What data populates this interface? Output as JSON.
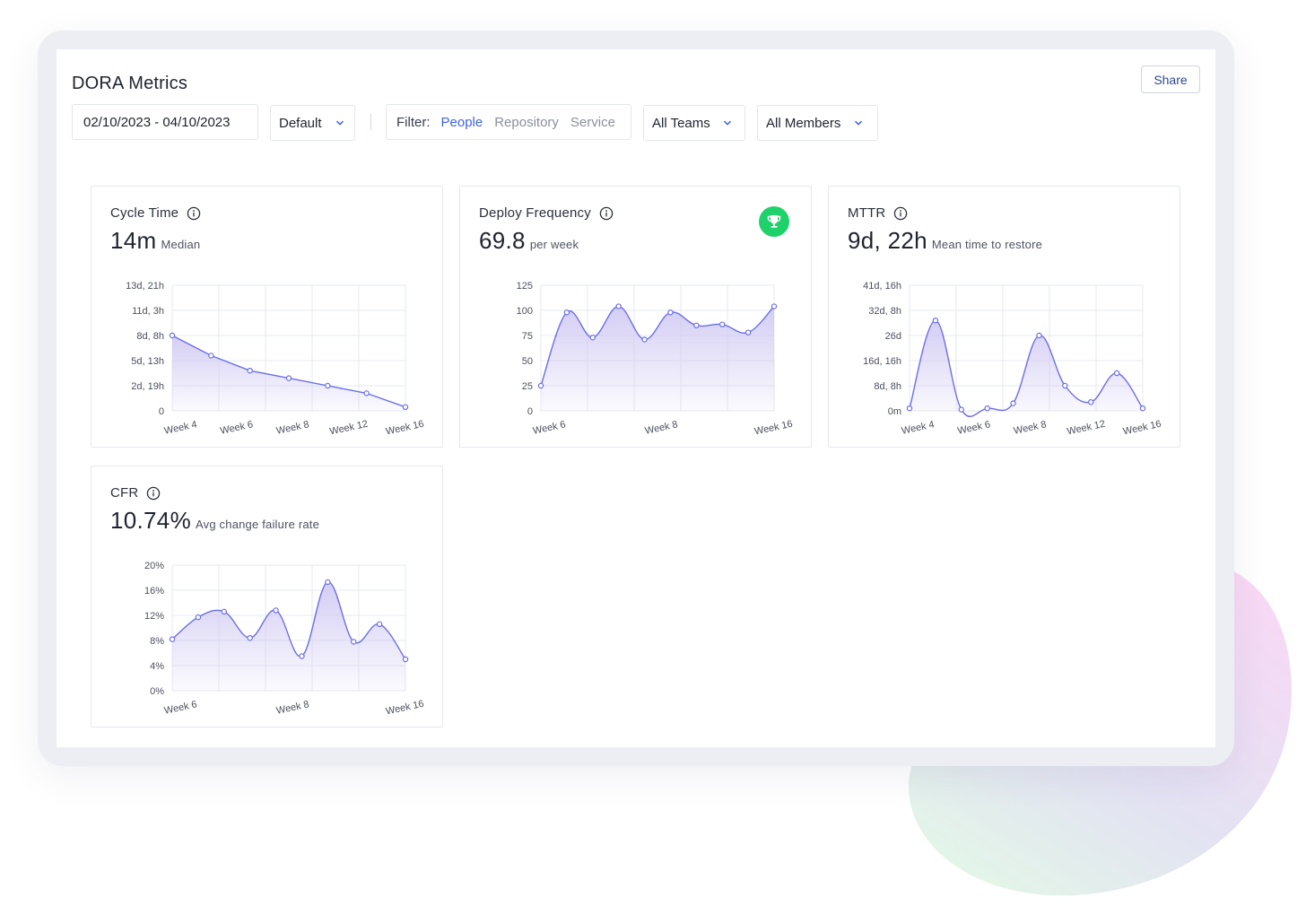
{
  "header": {
    "title": "DORA Metrics",
    "share_label": "Share",
    "date_range": "02/10/2023 - 04/10/2023",
    "preset": "Default",
    "filter_label": "Filter:",
    "filter_options": [
      "People",
      "Repository",
      "Service"
    ],
    "filter_active": "People",
    "teams": "All Teams",
    "members": "All Members"
  },
  "colors": {
    "accent": "#3f63e6",
    "line": "#6b6ee8",
    "area_top": "#cfc8f2",
    "trophy": "#1fd16a",
    "grid": "#e6e8ee"
  },
  "cards": [
    {
      "title": "Cycle Time",
      "value": "14m",
      "sub": "Median",
      "icon": "info-icon"
    },
    {
      "title": "Deploy Frequency",
      "value": "69.8",
      "sub": "per week",
      "icon": "info-icon",
      "badge": "trophy-icon"
    },
    {
      "title": "MTTR",
      "value": "9d, 22h",
      "sub": "Mean time to restore",
      "icon": "info-icon"
    },
    {
      "title": "CFR",
      "value": "10.74%",
      "sub": "Avg change failure rate",
      "icon": "info-icon"
    }
  ],
  "chart_data": [
    {
      "type": "area",
      "y_ticks": [
        "0",
        "2d, 19h",
        "5d, 13h",
        "8d, 8h",
        "11d, 3h",
        "13d, 21h"
      ],
      "x_ticks": [
        "Week 4",
        "Week 6",
        "Week 8",
        "Week 12",
        "Week 16"
      ],
      "ylim": [
        0,
        5
      ],
      "values": [
        3.0,
        2.2,
        1.6,
        1.3,
        1.0,
        0.7,
        0.15
      ],
      "smooth": false
    },
    {
      "type": "area",
      "y_ticks": [
        "0",
        "25",
        "50",
        "75",
        "100",
        "125"
      ],
      "x_ticks": [
        "Week 6",
        "Week 8",
        "Week 16"
      ],
      "ylim": [
        0,
        125
      ],
      "values": [
        25,
        98,
        73,
        104,
        71,
        98,
        85,
        86,
        78,
        104
      ],
      "smooth": true
    },
    {
      "type": "area",
      "y_ticks": [
        "0m",
        "8d, 8h",
        "16d, 16h",
        "26d",
        "32d, 8h",
        "41d, 16h"
      ],
      "x_ticks": [
        "Week 4",
        "Week 6",
        "Week 8",
        "Week 12",
        "Week 16"
      ],
      "ylim": [
        0,
        5
      ],
      "values": [
        0.1,
        3.6,
        0.05,
        0.1,
        0.3,
        3.0,
        1.0,
        0.35,
        1.5,
        0.1
      ],
      "smooth": true
    },
    {
      "type": "area",
      "y_ticks": [
        "0%",
        "4%",
        "8%",
        "12%",
        "16%",
        "20%"
      ],
      "x_ticks": [
        "Week 6",
        "Week 8",
        "Week 16"
      ],
      "ylim": [
        0,
        20
      ],
      "values": [
        8.2,
        11.7,
        12.6,
        8.4,
        12.8,
        5.5,
        17.3,
        7.8,
        10.6,
        5.0
      ],
      "smooth": true
    }
  ]
}
